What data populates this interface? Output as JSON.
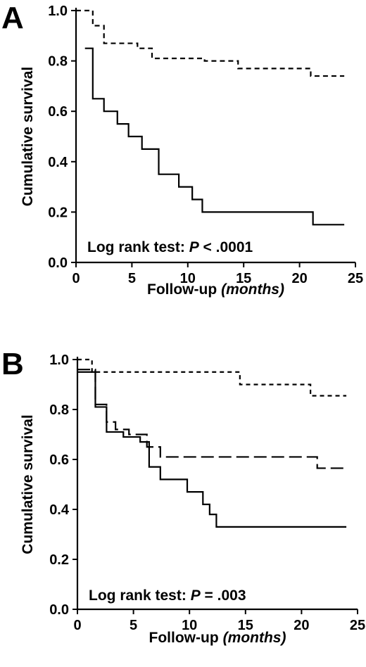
{
  "chart_data": [
    {
      "type": "line",
      "panel_label": "A",
      "xlabel": "Follow-up",
      "xlabel_unit": "(months)",
      "ylabel": "Cumulative survival",
      "xlim": [
        0,
        25
      ],
      "ylim": [
        0,
        1.0
      ],
      "xticks": [
        0,
        5,
        10,
        15,
        20,
        25
      ],
      "yticks": [
        "0.0",
        "0.2",
        "0.4",
        "0.6",
        "0.8",
        "1.0"
      ],
      "annotation_prefix": "Log rank test: ",
      "annotation_p": "P",
      "annotation_value": " < .0001",
      "grid": false,
      "series": [
        {
          "style": "dashed",
          "x": [
            0,
            1.5,
            2.5,
            5.5,
            6.8,
            11.5,
            14.5,
            21.0,
            24.0
          ],
          "y": [
            1.0,
            0.94,
            0.87,
            0.85,
            0.81,
            0.8,
            0.77,
            0.74,
            0.74
          ]
        },
        {
          "style": "solid",
          "x": [
            0.8,
            1.5,
            2.5,
            3.7,
            4.7,
            5.9,
            7.4,
            9.2,
            10.4,
            11.3,
            21.2,
            24.0
          ],
          "y": [
            0.85,
            0.65,
            0.6,
            0.55,
            0.5,
            0.45,
            0.35,
            0.3,
            0.25,
            0.2,
            0.15,
            0.15
          ]
        }
      ]
    },
    {
      "type": "line",
      "panel_label": "B",
      "xlabel": "Follow-up",
      "xlabel_unit": "(months)",
      "ylabel": "Cumulative survival",
      "xlim": [
        0,
        25
      ],
      "ylim": [
        0,
        1.0
      ],
      "xticks": [
        0,
        5,
        10,
        15,
        20,
        25
      ],
      "yticks": [
        "0.0",
        "0.2",
        "0.4",
        "0.6",
        "0.8",
        "1.0"
      ],
      "annotation_prefix": "Log rank test: ",
      "annotation_p": "P",
      "annotation_value": " = .003",
      "grid": false,
      "series": [
        {
          "style": "short-dashed",
          "x": [
            0,
            1.3,
            14.5,
            20.8,
            24.0
          ],
          "y": [
            1.0,
            0.95,
            0.9,
            0.855,
            0.855
          ]
        },
        {
          "style": "long-dashed",
          "x": [
            0,
            1.6,
            2.6,
            3.4,
            4.6,
            6.2,
            7.4,
            21.4,
            24.0
          ],
          "y": [
            0.96,
            0.82,
            0.75,
            0.72,
            0.7,
            0.65,
            0.61,
            0.565,
            0.565
          ]
        },
        {
          "style": "solid",
          "x": [
            0,
            1.6,
            2.6,
            4.1,
            5.6,
            6.4,
            7.4,
            9.8,
            11.2,
            11.8,
            12.4,
            24.0
          ],
          "y": [
            0.95,
            0.81,
            0.71,
            0.69,
            0.67,
            0.57,
            0.52,
            0.47,
            0.42,
            0.38,
            0.33,
            0.33
          ]
        }
      ]
    }
  ]
}
